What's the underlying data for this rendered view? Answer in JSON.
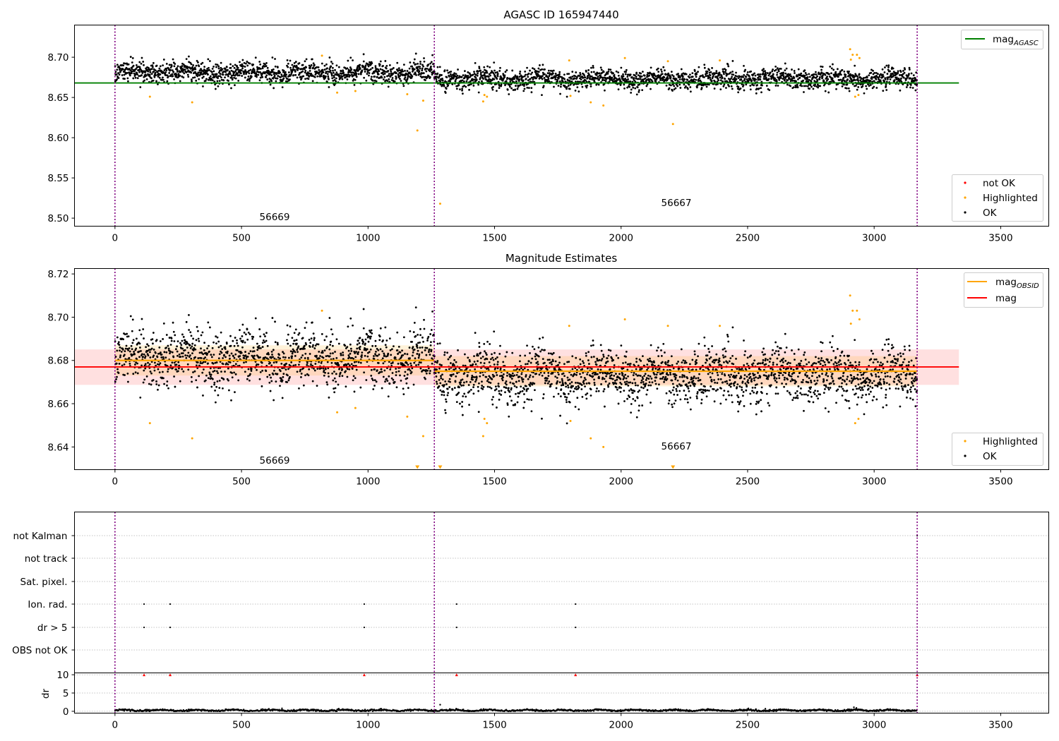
{
  "chart_data": [
    {
      "type": "scatter",
      "title": "AGASC ID 165947440",
      "xlim": [
        -160,
        3690
      ],
      "ylim": [
        8.49,
        8.74
      ],
      "x_ticks": [
        0,
        500,
        1000,
        1500,
        2000,
        2500,
        3000,
        3500
      ],
      "y_ticks": [
        "8.50",
        "8.55",
        "8.60",
        "8.65",
        "8.70"
      ],
      "y_tick_values": [
        8.5,
        8.55,
        8.6,
        8.65,
        8.7
      ],
      "vlines_x": [
        0,
        1262,
        3170
      ],
      "annotations": [
        {
          "text": "56669",
          "x": 630,
          "y": 8.5
        },
        {
          "text": "56667",
          "x": 2215,
          "y": 8.518
        }
      ],
      "hline": {
        "name": "mag",
        "sub": "AGASC",
        "y": 8.668,
        "x_range": [
          -160,
          3335
        ],
        "color": "#008000"
      },
      "legend_lines": [
        {
          "label": "mag",
          "sub": "AGASC",
          "color": "#008000"
        }
      ],
      "legend_points": [
        {
          "label": "not OK",
          "color": "#ff0000"
        },
        {
          "label": "Highlighted",
          "color": "#ffa500"
        },
        {
          "label": "OK",
          "color": "#000000"
        }
      ],
      "ok_segments": [
        {
          "x": [
            0,
            1262
          ],
          "mean": 8.681,
          "sd": 0.0075
        },
        {
          "x": [
            1262,
            3170
          ],
          "mean": 8.673,
          "sd": 0.0075
        }
      ],
      "highlighted_points": [
        [
          138,
          8.651
        ],
        [
          305,
          8.644
        ],
        [
          818,
          8.702
        ],
        [
          878,
          8.656
        ],
        [
          950,
          8.658
        ],
        [
          1155,
          8.654
        ],
        [
          1195,
          8.609
        ],
        [
          1218,
          8.646
        ],
        [
          1285,
          8.518
        ],
        [
          1455,
          8.645
        ],
        [
          1460,
          8.653
        ],
        [
          1470,
          8.651
        ],
        [
          1795,
          8.696
        ],
        [
          1800,
          8.652
        ],
        [
          1880,
          8.644
        ],
        [
          1930,
          8.64
        ],
        [
          2015,
          8.699
        ],
        [
          2185,
          8.695
        ],
        [
          2205,
          8.617
        ],
        [
          2390,
          8.696
        ],
        [
          2905,
          8.71
        ],
        [
          2908,
          8.697
        ],
        [
          2915,
          8.703
        ],
        [
          2925,
          8.651
        ],
        [
          2932,
          8.703
        ],
        [
          2938,
          8.653
        ],
        [
          2942,
          8.699
        ]
      ]
    },
    {
      "type": "scatter",
      "title": "Magnitude Estimates",
      "xlim": [
        -160,
        3690
      ],
      "ylim": [
        8.6295,
        8.7225
      ],
      "x_ticks": [
        0,
        500,
        1000,
        1500,
        2000,
        2500,
        3000,
        3500
      ],
      "y_ticks": [
        "8.64",
        "8.66",
        "8.68",
        "8.70",
        "8.72"
      ],
      "y_tick_values": [
        8.64,
        8.66,
        8.68,
        8.7,
        8.72
      ],
      "vlines_x": [
        0,
        1262,
        3170
      ],
      "annotations": [
        {
          "text": "56669",
          "x": 630,
          "y": 8.633
        },
        {
          "text": "56667",
          "x": 2215,
          "y": 8.6395
        }
      ],
      "mag": {
        "y": 8.677,
        "band": [
          8.6687,
          8.6851
        ],
        "x_range": [
          -160,
          3335
        ],
        "color": "#ff0000"
      },
      "mag_obsid": [
        {
          "x": [
            0,
            1262
          ],
          "y": 8.68,
          "band": [
            8.673,
            8.687
          ]
        },
        {
          "x": [
            1262,
            3170
          ],
          "y": 8.675,
          "band": [
            8.668,
            8.682
          ]
        }
      ],
      "legend_lines": [
        {
          "label": "mag",
          "sub": "OBSID",
          "color": "#ffa500"
        },
        {
          "label": "mag",
          "sub": "",
          "color": "#ff0000"
        }
      ],
      "legend_points": [
        {
          "label": "Highlighted",
          "color": "#ffa500"
        },
        {
          "label": "OK",
          "color": "#000000"
        }
      ],
      "ok_segments": [
        {
          "x": [
            0,
            1262
          ],
          "mean": 8.681,
          "sd": 0.0075
        },
        {
          "x": [
            1262,
            3170
          ],
          "mean": 8.673,
          "sd": 0.0075
        }
      ],
      "highlighted_points": [
        [
          138,
          8.651
        ],
        [
          305,
          8.644
        ],
        [
          818,
          8.703
        ],
        [
          878,
          8.656
        ],
        [
          950,
          8.658
        ],
        [
          1155,
          8.654
        ],
        [
          1218,
          8.645
        ],
        [
          1455,
          8.645
        ],
        [
          1460,
          8.653
        ],
        [
          1470,
          8.651
        ],
        [
          1795,
          8.696
        ],
        [
          1800,
          8.652
        ],
        [
          1880,
          8.644
        ],
        [
          1930,
          8.64
        ],
        [
          2015,
          8.699
        ],
        [
          2185,
          8.696
        ],
        [
          2390,
          8.696
        ],
        [
          2905,
          8.71
        ],
        [
          2908,
          8.697
        ],
        [
          2915,
          8.703
        ],
        [
          2925,
          8.651
        ],
        [
          2932,
          8.703
        ],
        [
          2938,
          8.653
        ],
        [
          2942,
          8.699
        ]
      ],
      "offscale_markers_x": [
        1195,
        1285,
        2205
      ]
    },
    {
      "type": "scatter",
      "title": "",
      "xlim": [
        -160,
        3690
      ],
      "x_ticks": [
        0,
        500,
        1000,
        1500,
        2000,
        2500,
        3000,
        3500
      ],
      "vlines_x": [
        0,
        1262,
        3170
      ],
      "flag_rows": [
        "not Kalman",
        "not track",
        "Sat. pixel.",
        "Ion. rad.",
        "dr > 5",
        "OBS not OK"
      ],
      "flag_points": {
        "Ion. rad.": [
          115,
          218,
          985,
          1350,
          1820
        ],
        "dr > 5": [
          115,
          218,
          985,
          1350,
          1820
        ],
        "not Kalman": [
          3170
        ]
      },
      "dr": {
        "ylabel": "dr",
        "ylim": [
          -0.5,
          10.5
        ],
        "y_ticks": [
          "0",
          "5",
          "10"
        ],
        "y_tick_values": [
          0,
          5,
          10
        ],
        "capped_points_x": [
          115,
          218,
          985,
          1350,
          1820,
          3170
        ],
        "cap_value": 10,
        "base_mean": 0.25,
        "spikes": [
          [
            1285,
            1.8
          ],
          [
            2920,
            1.1
          ],
          [
            2930,
            0.9
          ],
          [
            660,
            0.8
          ],
          [
            2570,
            0.7
          ]
        ]
      }
    }
  ]
}
